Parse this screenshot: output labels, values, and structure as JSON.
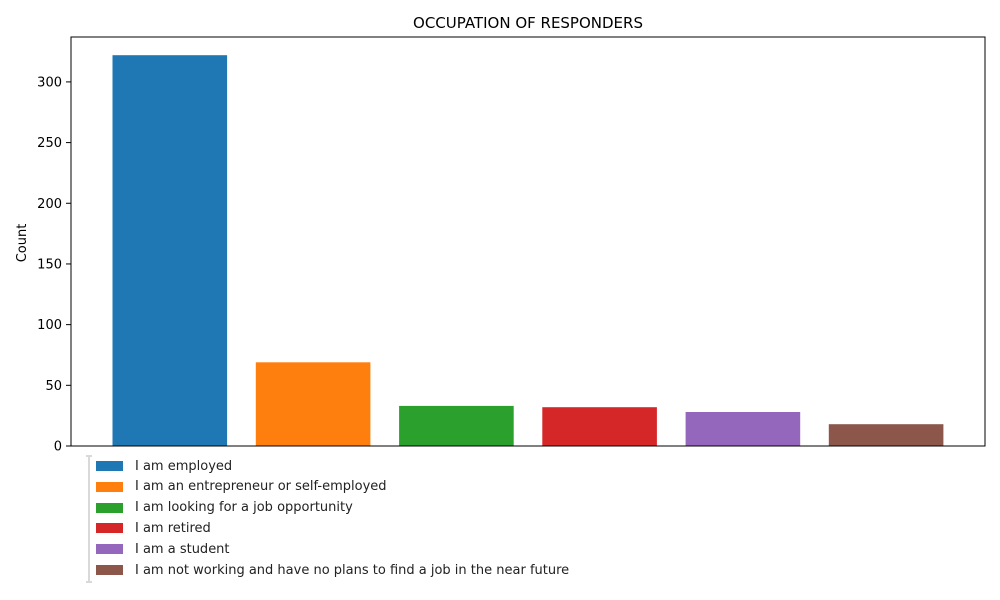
{
  "chart_data": {
    "type": "bar",
    "title": "OCCUPATION OF RESPONDERS",
    "xlabel": "",
    "ylabel": "Count",
    "ylim": [
      0,
      337
    ],
    "yticks": [
      0,
      50,
      100,
      150,
      200,
      250,
      300
    ],
    "grid": false,
    "legend_placement": "bottom-left",
    "categories": [
      "I am employed",
      "I am an entrepreneur or self-employed",
      "I am looking for a job opportunity",
      "I am retired",
      "I am a student",
      "I am not working and have no plans to find a job in the near future"
    ],
    "values": [
      322,
      69,
      33,
      32,
      28,
      18
    ],
    "colors": [
      "#1f77b4",
      "#ff7f0e",
      "#2ca02c",
      "#d62728",
      "#9467bd",
      "#8c564b"
    ]
  }
}
